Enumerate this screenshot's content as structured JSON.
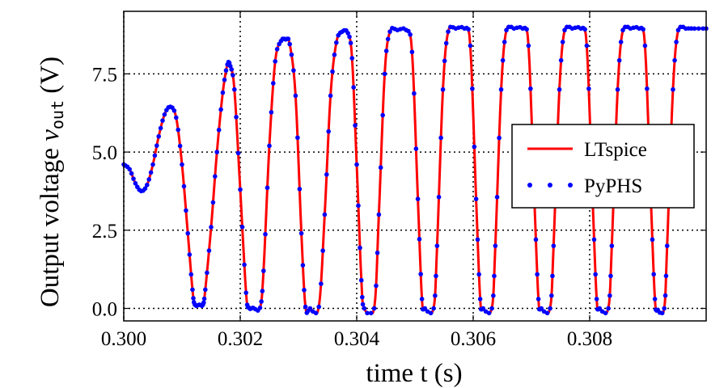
{
  "chart_data": {
    "type": "line",
    "xlabel": "time t (s)",
    "ylabel_parts": {
      "prefix": "Output voltage ",
      "var": "v",
      "sub": "out",
      "suffix": " (V)"
    },
    "xlim": [
      0.3,
      0.31
    ],
    "ylim": [
      -0.4,
      9.5
    ],
    "x_ticks": [
      0.3,
      0.302,
      0.304,
      0.306,
      0.308
    ],
    "x_tick_labels": [
      "0.300",
      "0.302",
      "0.304",
      "0.306",
      "0.308"
    ],
    "y_ticks": [
      0.0,
      2.5,
      5.0,
      7.5
    ],
    "y_tick_labels": [
      "0.0",
      "2.5",
      "5.0",
      "7.5"
    ],
    "grid": true,
    "legend_position": "right",
    "series": [
      {
        "name": "LTspice",
        "style": "line",
        "color": "#ff0000"
      },
      {
        "name": "PyPHS",
        "style": "dots",
        "color": "#0000ff"
      }
    ],
    "waveform": {
      "points": [
        [
          0.3,
          4.6
        ],
        [
          0.3001,
          4.45
        ],
        [
          0.3002,
          4.0
        ],
        [
          0.3003,
          3.75
        ],
        [
          0.3004,
          3.95
        ],
        [
          0.3005,
          4.6
        ],
        [
          0.3006,
          5.5
        ],
        [
          0.3007,
          6.2
        ],
        [
          0.3008,
          6.45
        ],
        [
          0.3009,
          6.1
        ],
        [
          0.301,
          4.6
        ],
        [
          0.3011,
          2.4
        ],
        [
          0.30118,
          0.6
        ],
        [
          0.30122,
          0.12
        ],
        [
          0.3013,
          0.12
        ],
        [
          0.30136,
          0.12
        ],
        [
          0.3014,
          0.6
        ],
        [
          0.3015,
          2.6
        ],
        [
          0.3016,
          5.0
        ],
        [
          0.3017,
          6.9
        ],
        [
          0.30178,
          7.8
        ],
        [
          0.30183,
          7.75
        ],
        [
          0.3019,
          7.0
        ],
        [
          0.302,
          3.8
        ],
        [
          0.3021,
          0.5
        ],
        [
          0.30215,
          0.02
        ],
        [
          0.30222,
          0.02
        ],
        [
          0.30234,
          0.02
        ],
        [
          0.3024,
          1.2
        ],
        [
          0.3025,
          5.2
        ],
        [
          0.3026,
          7.9
        ],
        [
          0.3027,
          8.55
        ],
        [
          0.30278,
          8.6
        ],
        [
          0.30285,
          8.45
        ],
        [
          0.30295,
          6.8
        ],
        [
          0.30305,
          2.4
        ],
        [
          0.30312,
          0.05
        ],
        [
          0.3032,
          0.0
        ],
        [
          0.30335,
          0.05
        ],
        [
          0.30345,
          3.0
        ],
        [
          0.30355,
          6.8
        ],
        [
          0.30365,
          8.5
        ],
        [
          0.30375,
          8.85
        ],
        [
          0.30385,
          8.8
        ],
        [
          0.30392,
          8.0
        ],
        [
          0.304,
          4.6
        ],
        [
          0.30408,
          0.9
        ],
        [
          0.30413,
          0.0
        ],
        [
          0.3043,
          0.0
        ],
        [
          0.30438,
          3.0
        ],
        [
          0.30448,
          7.5
        ],
        [
          0.30457,
          8.85
        ],
        [
          0.3047,
          8.9
        ],
        [
          0.30485,
          8.9
        ],
        [
          0.30495,
          8.2
        ],
        [
          0.30505,
          3.5
        ],
        [
          0.30512,
          0.3
        ],
        [
          0.30517,
          0.0
        ],
        [
          0.30532,
          0.0
        ],
        [
          0.30538,
          2.0
        ],
        [
          0.30548,
          7.0
        ],
        [
          0.30557,
          8.85
        ],
        [
          0.3057,
          8.95
        ],
        [
          0.30585,
          8.95
        ],
        [
          0.30595,
          8.4
        ],
        [
          0.30605,
          3.5
        ],
        [
          0.30612,
          0.3
        ],
        [
          0.30617,
          0.0
        ],
        [
          0.30632,
          0.0
        ],
        [
          0.30638,
          2.0
        ],
        [
          0.30648,
          7.0
        ],
        [
          0.30657,
          8.9
        ],
        [
          0.3067,
          8.95
        ],
        [
          0.30685,
          8.95
        ],
        [
          0.30695,
          8.4
        ],
        [
          0.30705,
          3.5
        ],
        [
          0.30712,
          0.3
        ],
        [
          0.30717,
          0.0
        ],
        [
          0.30732,
          0.0
        ],
        [
          0.30738,
          2.0
        ],
        [
          0.30748,
          7.0
        ],
        [
          0.30757,
          8.9
        ],
        [
          0.3077,
          8.95
        ],
        [
          0.30785,
          8.95
        ],
        [
          0.30795,
          8.4
        ],
        [
          0.30805,
          3.5
        ],
        [
          0.30812,
          0.3
        ],
        [
          0.30817,
          0.0
        ],
        [
          0.30832,
          0.0
        ],
        [
          0.30838,
          2.0
        ],
        [
          0.30848,
          7.0
        ],
        [
          0.30857,
          8.9
        ],
        [
          0.3087,
          8.95
        ],
        [
          0.30885,
          8.95
        ],
        [
          0.30895,
          8.4
        ],
        [
          0.30905,
          3.5
        ],
        [
          0.30912,
          0.3
        ],
        [
          0.30917,
          -0.05
        ],
        [
          0.30928,
          0.0
        ],
        [
          0.30933,
          2.0
        ],
        [
          0.30943,
          7.0
        ],
        [
          0.30952,
          8.9
        ],
        [
          0.30965,
          8.95
        ],
        [
          0.3098,
          8.95
        ],
        [
          0.31,
          8.95
        ]
      ]
    }
  }
}
